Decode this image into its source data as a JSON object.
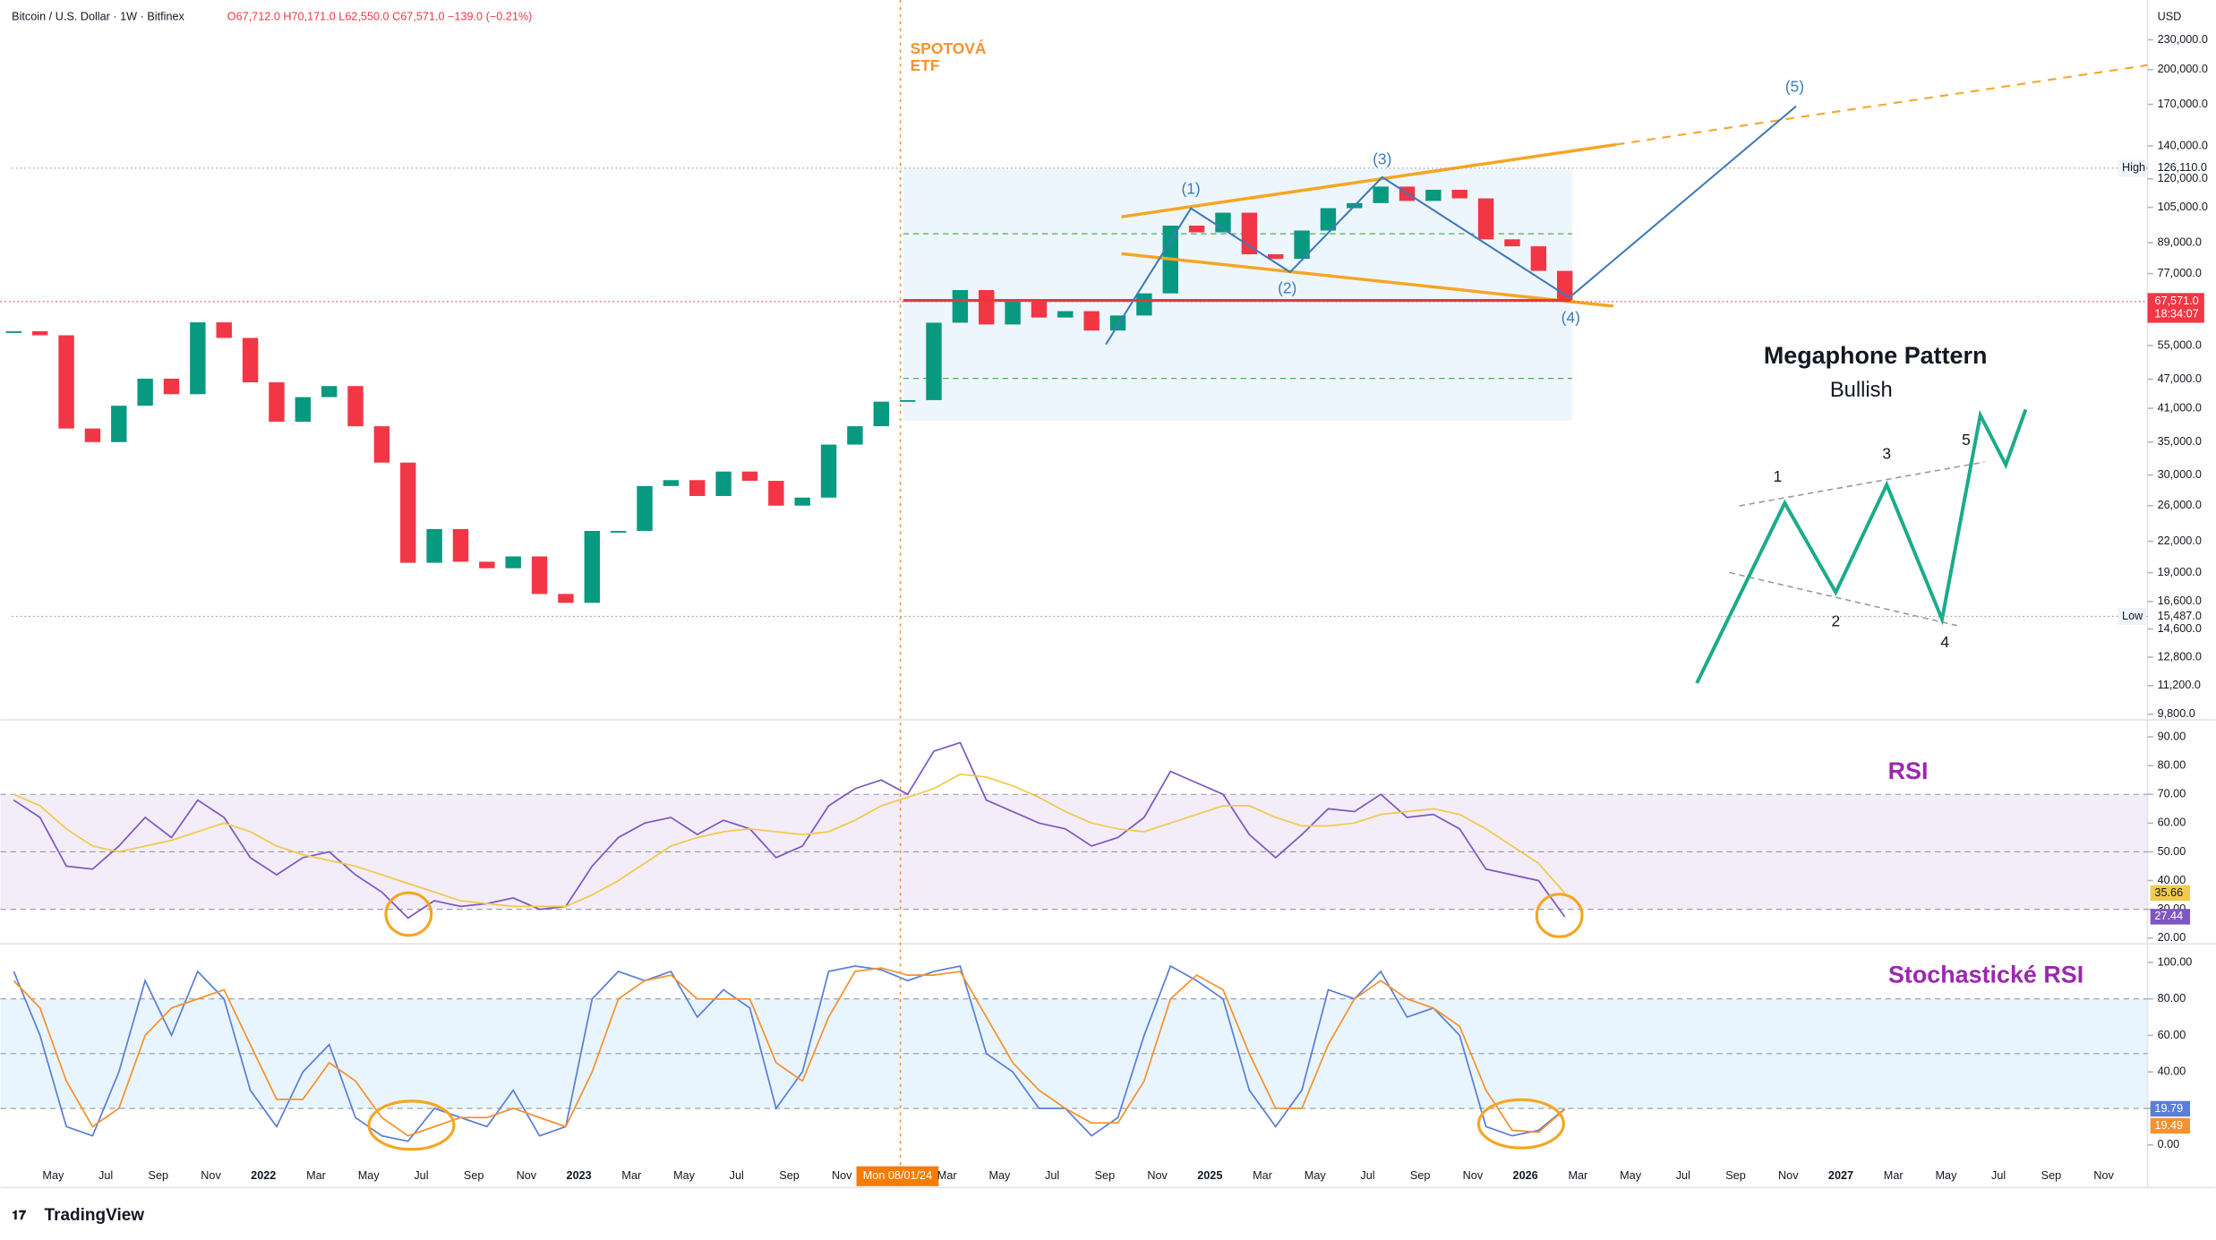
{
  "chart_data": [
    {
      "type": "candlestick",
      "title": "Bitcoin / U.S. Dollar · 1W · Bitfinex",
      "subtitle": "O67,712.0 H70,171.0 L62,550.0 C67,571.0 −139.0 (−0.21%)",
      "currency": "USD",
      "x": [
        "2021-03",
        "2021-04",
        "2021-05",
        "2021-06",
        "2021-07",
        "2021-08",
        "2021-09",
        "2021-10",
        "2021-11",
        "2021-12",
        "2022-01",
        "2022-02",
        "2022-03",
        "2022-04",
        "2022-05",
        "2022-06",
        "2022-07",
        "2022-08",
        "2022-09",
        "2022-10",
        "2022-11",
        "2022-12",
        "2023-01",
        "2023-02",
        "2023-03",
        "2023-04",
        "2023-05",
        "2023-06",
        "2023-07",
        "2023-08",
        "2023-09",
        "2023-10",
        "2023-11",
        "2023-12",
        "2024-01",
        "2024-02",
        "2024-03",
        "2024-04",
        "2024-05",
        "2024-06",
        "2024-07",
        "2024-08",
        "2024-09",
        "2024-10",
        "2024-11",
        "2024-12",
        "2025-01",
        "2025-02",
        "2025-03",
        "2025-04",
        "2025-05",
        "2025-06",
        "2025-07",
        "2025-08",
        "2025-09",
        "2025-10",
        "2025-11",
        "2025-12",
        "2026-01",
        "2026-02"
      ],
      "values": [
        58800,
        57700,
        37300,
        35000,
        41500,
        47100,
        43800,
        61300,
        57000,
        46300,
        38500,
        43200,
        45500,
        37700,
        31800,
        19900,
        23300,
        20000,
        19400,
        20500,
        17200,
        16500,
        23100,
        23100,
        28500,
        29300,
        27200,
        30500,
        29200,
        26000,
        27000,
        34600,
        37700,
        42300,
        42600,
        61200,
        71300,
        60700,
        67500,
        62700,
        64600,
        59000,
        63300,
        70200,
        96400,
        93400,
        102400,
        84300,
        82500,
        94200,
        104600,
        107100,
        115700,
        108200,
        114000,
        109500,
        90400,
        87500,
        78000,
        67571
      ],
      "up_color": "#089981",
      "down_color": "#f23645",
      "log_scale": true,
      "ylim": [
        9540,
        268000
      ],
      "yticks": [
        {
          "value": 230000,
          "label": "230,000.0"
        },
        {
          "value": 200000,
          "label": "200,000.0"
        },
        {
          "value": 170000,
          "label": "170,000.0"
        },
        {
          "value": 140000,
          "label": "140,000.0"
        },
        {
          "value": 120000,
          "label": "120,000.0"
        },
        {
          "value": 105000,
          "label": "105,000.0"
        },
        {
          "value": 89000,
          "label": "89,000.0"
        },
        {
          "value": 77000,
          "label": "77,000.0"
        },
        {
          "value": 55000,
          "label": "55,000.0"
        },
        {
          "value": 47000,
          "label": "47,000.0"
        },
        {
          "value": 41000,
          "label": "41,000.0"
        },
        {
          "value": 35000,
          "label": "35,000.0"
        },
        {
          "value": 30000,
          "label": "30,000.0"
        },
        {
          "value": 26000,
          "label": "26,000.0"
        },
        {
          "value": 22000,
          "label": "22,000.0"
        },
        {
          "value": 19000,
          "label": "19,000.0"
        },
        {
          "value": 16600,
          "label": "16,600.0"
        },
        {
          "value": 14600,
          "label": "14,600.0"
        },
        {
          "value": 12800,
          "label": "12,800.0"
        },
        {
          "value": 11200,
          "label": "11,200.0"
        },
        {
          "value": 9800,
          "label": "9,800.0"
        }
      ],
      "high": {
        "name": "High",
        "value": 126110,
        "label": "126,110.0"
      },
      "low": {
        "name": "Low",
        "value": 15487,
        "label": "15,487.0"
      },
      "price_tag": {
        "value": 67571,
        "label": "67,571.0",
        "countdown": "18:34:07"
      },
      "xticks": [
        {
          "value": "2021-05",
          "label": "May"
        },
        {
          "value": "2021-07",
          "label": "Jul"
        },
        {
          "value": "2021-09",
          "label": "Sep"
        },
        {
          "value": "2021-11",
          "label": "Nov"
        },
        {
          "value": "2022-01",
          "label": "2022"
        },
        {
          "value": "2022-03",
          "label": "Mar"
        },
        {
          "value": "2022-05",
          "label": "May"
        },
        {
          "value": "2022-07",
          "label": "Jul"
        },
        {
          "value": "2022-09",
          "label": "Sep"
        },
        {
          "value": "2022-11",
          "label": "Nov"
        },
        {
          "value": "2023-01",
          "label": "2023"
        },
        {
          "value": "2023-03",
          "label": "Mar"
        },
        {
          "value": "2023-05",
          "label": "May"
        },
        {
          "value": "2023-07",
          "label": "Jul"
        },
        {
          "value": "2023-09",
          "label": "Sep"
        },
        {
          "value": "2023-11",
          "label": "Nov"
        },
        {
          "value": "2024-03",
          "label": "Mar"
        },
        {
          "value": "2024-05",
          "label": "May"
        },
        {
          "value": "2024-07",
          "label": "Jul"
        },
        {
          "value": "2024-09",
          "label": "Sep"
        },
        {
          "value": "2024-11",
          "label": "Nov"
        },
        {
          "value": "2025-01",
          "label": "2025"
        },
        {
          "value": "2025-03",
          "label": "Mar"
        },
        {
          "value": "2025-05",
          "label": "May"
        },
        {
          "value": "2025-07",
          "label": "Jul"
        },
        {
          "value": "2025-09",
          "label": "Sep"
        },
        {
          "value": "2025-11",
          "label": "Nov"
        },
        {
          "value": "2026-01",
          "label": "2026"
        },
        {
          "value": "2026-03",
          "label": "Mar"
        },
        {
          "value": "2026-05",
          "label": "May"
        },
        {
          "value": "2026-07",
          "label": "Jul"
        },
        {
          "value": "2026-09",
          "label": "Sep"
        },
        {
          "value": "2026-11",
          "label": "Nov"
        },
        {
          "value": "2027-01",
          "label": "2027"
        },
        {
          "value": "2027-03",
          "label": "Mar"
        },
        {
          "value": "2027-05",
          "label": "May"
        },
        {
          "value": "2027-07",
          "label": "Jul"
        },
        {
          "value": "2027-09",
          "label": "Sep"
        },
        {
          "value": "2027-11",
          "label": "Nov"
        }
      ]
    },
    {
      "type": "line",
      "title": "RSI",
      "series": [
        {
          "color": "#7e57c2",
          "values": [
            68,
            62,
            45,
            44,
            52,
            62,
            55,
            68,
            62,
            48,
            42,
            48,
            50,
            42,
            36,
            27,
            33,
            31,
            32,
            34,
            30,
            31,
            45,
            55,
            60,
            62,
            56,
            61,
            58,
            48,
            52,
            66,
            72,
            75,
            70,
            85,
            88,
            68,
            64,
            60,
            58,
            52,
            55,
            62,
            78,
            74,
            70,
            56,
            48,
            56,
            65,
            64,
            70,
            62,
            63,
            58,
            44,
            42,
            40,
            27.44
          ]
        },
        {
          "color": "#f2c94c",
          "values": [
            70,
            66,
            58,
            52,
            50,
            52,
            54,
            57,
            60,
            57,
            52,
            49,
            47,
            45,
            42,
            39,
            36,
            33,
            32,
            31,
            31,
            31,
            35,
            40,
            46,
            52,
            55,
            57,
            58,
            57,
            56,
            57,
            61,
            66,
            69,
            72,
            77,
            76,
            73,
            69,
            64,
            60,
            58,
            57,
            60,
            63,
            66,
            66,
            62,
            59,
            59,
            60,
            63,
            64,
            65,
            63,
            58,
            52,
            46,
            35.66
          ]
        }
      ],
      "band": [
        30,
        70
      ],
      "midline": 50,
      "ylim": [
        18.5,
        95.9
      ],
      "yticks": [
        {
          "value": 20,
          "label": "20.00"
        },
        {
          "value": 30,
          "label": "30.00"
        },
        {
          "value": 40,
          "label": "40.00"
        },
        {
          "value": 50,
          "label": "50.00"
        },
        {
          "value": 60,
          "label": "60.00"
        },
        {
          "value": 70,
          "label": "70.00"
        },
        {
          "value": 80,
          "label": "80.00"
        },
        {
          "value": 90,
          "label": "90.00"
        }
      ]
    },
    {
      "type": "line",
      "title": "Stochastické RSI",
      "series": [
        {
          "color": "#5b7fd6",
          "values": [
            95,
            60,
            10,
            5,
            40,
            90,
            60,
            95,
            80,
            30,
            10,
            40,
            55,
            15,
            5,
            2,
            20,
            15,
            10,
            30,
            5,
            10,
            80,
            95,
            90,
            95,
            70,
            85,
            75,
            20,
            40,
            95,
            98,
            96,
            90,
            95,
            98,
            50,
            40,
            20,
            20,
            5,
            15,
            60,
            98,
            90,
            80,
            30,
            10,
            30,
            85,
            80,
            95,
            70,
            75,
            60,
            10,
            5,
            8,
            19.79
          ]
        },
        {
          "color": "#f5922f",
          "values": [
            90,
            75,
            35,
            10,
            20,
            60,
            75,
            80,
            85,
            55,
            25,
            25,
            45,
            35,
            15,
            5,
            10,
            15,
            15,
            20,
            15,
            10,
            40,
            80,
            90,
            93,
            80,
            80,
            80,
            45,
            35,
            70,
            95,
            97,
            93,
            93,
            95,
            70,
            45,
            30,
            20,
            12,
            12,
            35,
            80,
            93,
            85,
            50,
            20,
            20,
            55,
            80,
            90,
            80,
            75,
            65,
            30,
            8,
            7,
            19.49
          ]
        }
      ],
      "band": [
        20,
        80
      ],
      "midline": 50,
      "ylim": [
        -9.4,
        109.4
      ],
      "yticks": [
        {
          "value": 0,
          "label": "0.00"
        },
        {
          "value": 20,
          "label": "20.00"
        },
        {
          "value": 40,
          "label": "40.00"
        },
        {
          "value": 60,
          "label": "60.00"
        },
        {
          "value": 80,
          "label": "80.00"
        },
        {
          "value": 100,
          "label": "100.00"
        }
      ]
    }
  ],
  "annotations": {
    "etf": [
      "SPOTOVÁ",
      "ETF"
    ],
    "etf_date": "Mon 08/01/24",
    "waves": [
      "(1)",
      "(2)",
      "(3)",
      "(4)",
      "(5)"
    ],
    "pattern_title": "Megaphone Pattern",
    "pattern_subtitle": "Bullish",
    "pattern_points": [
      "1",
      "2",
      "3",
      "4",
      "5"
    ]
  },
  "brand": "TradingView"
}
